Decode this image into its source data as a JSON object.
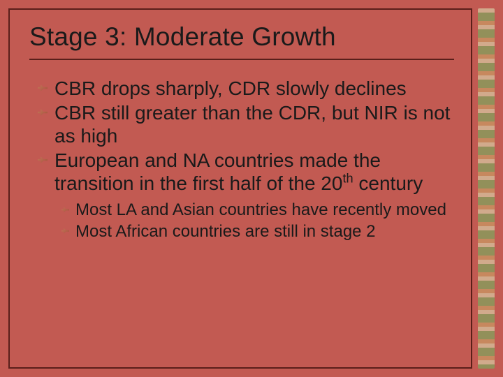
{
  "title": "Stage 3: Moderate Growth",
  "bullets": [
    "CBR drops sharply, CDR slowly declines",
    "CBR still greater than the CDR, but NIR is not as high",
    "European and NA countries made the transition in the first half of the 20th century"
  ],
  "subbullets": [
    "Most LA and Asian countries have recently moved",
    "Most African countries are still in stage 2"
  ],
  "colors": {
    "background": "#c25a52",
    "border": "#5a1f1a",
    "text": "#1a1a1a"
  }
}
